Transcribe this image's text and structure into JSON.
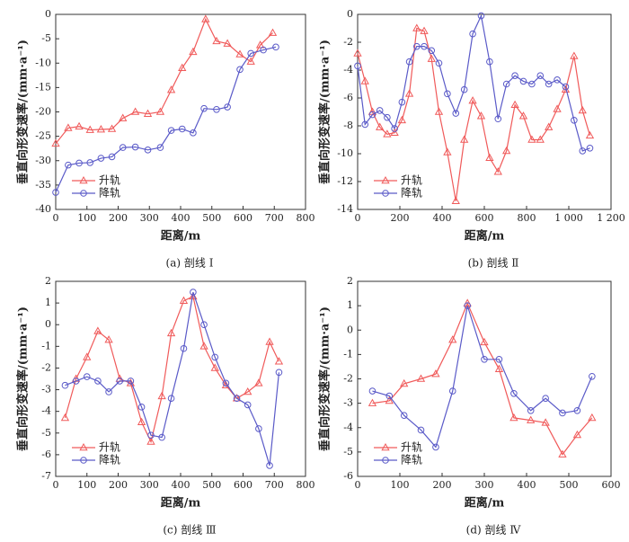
{
  "chart_data": [
    {
      "type": "line",
      "caption": "(a) 剖线 Ⅰ",
      "xlabel": "距离/m",
      "ylabel": "垂直向形变速率/(mm·a⁻¹)",
      "legend": "lower left",
      "xlim": [
        0,
        800
      ],
      "xticks": [
        0,
        100,
        200,
        300,
        400,
        500,
        600,
        700,
        800
      ],
      "ylim": [
        -40,
        0
      ],
      "yticks": [
        -40,
        -35,
        -30,
        -25,
        -20,
        -15,
        -10,
        -5,
        0
      ],
      "series": [
        {
          "name": "升轨",
          "color": "#f05a5a",
          "marker": "triangle",
          "x": [
            0,
            40,
            75,
            110,
            145,
            180,
            215,
            255,
            295,
            335,
            370,
            405,
            440,
            480,
            515,
            550,
            590,
            625,
            655,
            695
          ],
          "values": [
            -26.5,
            -23.3,
            -23,
            -23.7,
            -23.6,
            -23.5,
            -21.3,
            -20,
            -20.4,
            -20,
            -15.5,
            -11,
            -7.7,
            -1,
            -5.5,
            -6,
            -8.2,
            -9.7,
            -6.3,
            -3.8
          ]
        },
        {
          "name": "降轨",
          "color": "#5a5ac8",
          "marker": "circle",
          "x": [
            0,
            40,
            75,
            110,
            145,
            180,
            215,
            255,
            295,
            335,
            370,
            405,
            440,
            475,
            515,
            550,
            590,
            625,
            665,
            705
          ],
          "values": [
            -36.5,
            -30.9,
            -30.5,
            -30.4,
            -29.5,
            -29.2,
            -27.3,
            -27.2,
            -27.8,
            -27.3,
            -23.8,
            -23.5,
            -24.3,
            -19.3,
            -19.5,
            -19,
            -11.3,
            -8,
            -7.3,
            -6.7
          ]
        }
      ]
    },
    {
      "type": "line",
      "caption": "(b) 剖线 Ⅱ",
      "xlabel": "距离/m",
      "ylabel": "垂直向形变速率/(mm·a⁻¹)",
      "legend": "lower left",
      "xlim": [
        0,
        1200
      ],
      "xticks": [
        0,
        200,
        400,
        600,
        800,
        {
          "value": 1000,
          "label": "1 000"
        },
        {
          "value": 1200,
          "label": "1 200"
        }
      ],
      "ylim": [
        -14,
        0
      ],
      "yticks": [
        -14,
        -12,
        -10,
        -8,
        -6,
        -4,
        -2,
        0
      ],
      "series": [
        {
          "name": "升轨",
          "color": "#f05a5a",
          "marker": "triangle",
          "x": [
            0,
            35,
            70,
            105,
            140,
            175,
            210,
            245,
            280,
            315,
            350,
            385,
            425,
            465,
            505,
            545,
            585,
            625,
            665,
            705,
            745,
            785,
            825,
            865,
            905,
            945,
            985,
            1025,
            1065,
            1100
          ],
          "values": [
            -2.8,
            -4.8,
            -7,
            -8.1,
            -8.6,
            -8.5,
            -7.6,
            -5.7,
            -1,
            -1.2,
            -3.2,
            -7,
            -9.9,
            -13.4,
            -9,
            -6.2,
            -7.3,
            -10.3,
            -11.3,
            -9.8,
            -6.5,
            -7.3,
            -9,
            -9,
            -8.1,
            -6.8,
            -5.4,
            -3,
            -6.9,
            -8.7
          ]
        },
        {
          "name": "降轨",
          "color": "#5a5ac8",
          "marker": "circle",
          "x": [
            0,
            35,
            70,
            105,
            140,
            175,
            210,
            245,
            280,
            315,
            350,
            385,
            425,
            465,
            505,
            545,
            585,
            625,
            665,
            705,
            745,
            785,
            825,
            865,
            905,
            945,
            985,
            1025,
            1065,
            1100
          ],
          "values": [
            -3.7,
            -7.9,
            -7.2,
            -6.9,
            -7.4,
            -8.2,
            -6.3,
            -3.4,
            -2.3,
            -2.3,
            -2.6,
            -3.5,
            -5.7,
            -7.1,
            -5.4,
            -1.4,
            -0.1,
            -3.4,
            -7.5,
            -5,
            -4.4,
            -4.8,
            -5,
            -4.4,
            -5,
            -4.7,
            -5.2,
            -7.6,
            -9.8,
            -9.6
          ]
        }
      ]
    },
    {
      "type": "line",
      "caption": "(c) 剖线 Ⅲ",
      "xlabel": "距离/m",
      "ylabel": "垂直向形变速率/(mm·a⁻¹)",
      "legend": "lower left",
      "xlim": [
        0,
        800
      ],
      "xticks": [
        0,
        100,
        200,
        300,
        400,
        500,
        600,
        700,
        800
      ],
      "ylim": [
        -7,
        2
      ],
      "yticks": [
        -7,
        -6,
        -5,
        -4,
        -3,
        -2,
        -1,
        0,
        1,
        2
      ],
      "series": [
        {
          "name": "升轨",
          "color": "#f05a5a",
          "marker": "triangle",
          "x": [
            30,
            65,
            100,
            135,
            170,
            205,
            240,
            275,
            305,
            340,
            370,
            410,
            440,
            475,
            510,
            545,
            580,
            615,
            650,
            685,
            715
          ],
          "values": [
            -4.3,
            -2.5,
            -1.5,
            -0.3,
            -0.7,
            -2.5,
            -2.7,
            -4.5,
            -5.4,
            -3.3,
            -0.4,
            1.1,
            1.3,
            -1,
            -2,
            -2.8,
            -3.4,
            -3.1,
            -2.7,
            -0.8,
            -1.7
          ]
        },
        {
          "name": "降轨",
          "color": "#5a5ac8",
          "marker": "circle",
          "x": [
            30,
            65,
            100,
            135,
            170,
            205,
            240,
            275,
            305,
            340,
            370,
            410,
            440,
            475,
            510,
            545,
            580,
            615,
            650,
            685,
            715
          ],
          "values": [
            -2.8,
            -2.6,
            -2.4,
            -2.6,
            -3.1,
            -2.6,
            -2.6,
            -3.8,
            -5.1,
            -5.2,
            -3.4,
            -1.1,
            1.5,
            0,
            -1.5,
            -2.7,
            -3.4,
            -3.7,
            -4.8,
            -6.5,
            -2.2
          ]
        }
      ]
    },
    {
      "type": "line",
      "caption": "(d) 剖线 Ⅳ",
      "xlabel": "距离/m",
      "ylabel": "垂直向形变速率/(mm·a⁻¹)",
      "legend": "lower left",
      "xlim": [
        0,
        600
      ],
      "xticks": [
        0,
        100,
        200,
        300,
        400,
        500,
        600
      ],
      "ylim": [
        -6,
        2
      ],
      "yticks": [
        -6,
        -5,
        -4,
        -3,
        -2,
        -1,
        0,
        1,
        2
      ],
      "series": [
        {
          "name": "升轨",
          "color": "#f05a5a",
          "marker": "triangle",
          "x": [
            35,
            75,
            110,
            150,
            185,
            225,
            260,
            300,
            335,
            370,
            410,
            445,
            485,
            520,
            555
          ],
          "values": [
            -3,
            -2.9,
            -2.2,
            -2,
            -1.8,
            -0.4,
            1.1,
            -0.5,
            -1.6,
            -3.6,
            -3.7,
            -3.8,
            -5.1,
            -4.3,
            -3.6
          ]
        },
        {
          "name": "降轨",
          "color": "#5a5ac8",
          "marker": "circle",
          "x": [
            35,
            75,
            110,
            150,
            185,
            225,
            260,
            300,
            335,
            370,
            410,
            445,
            485,
            520,
            555
          ],
          "values": [
            -2.5,
            -2.7,
            -3.5,
            -4.1,
            -4.8,
            -2.5,
            1,
            -1.2,
            -1.2,
            -2.6,
            -3.3,
            -2.8,
            -3.4,
            -3.3,
            -1.9
          ]
        }
      ]
    }
  ]
}
